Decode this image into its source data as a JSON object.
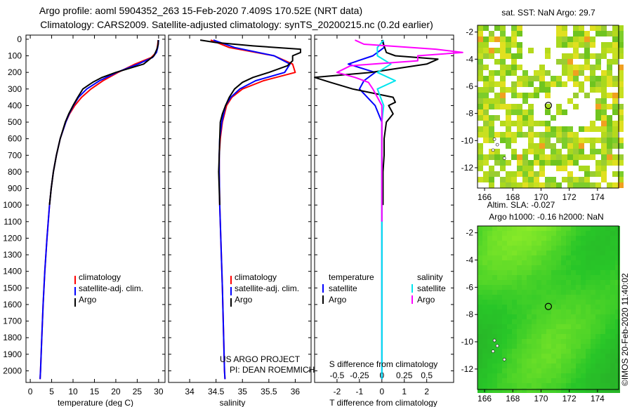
{
  "title": {
    "line1": "Argo profile: aoml 5904352_263 15-Feb-2020 7.409S 170.52E (NRT data)",
    "line2": "Climatology: CARS2009. Satellite-adjusted climatology: synTS_20200215.nc (0.2d earlier)"
  },
  "colors": {
    "climatology": "#ff0000",
    "satellite": "#0000ff",
    "argo": "#000000",
    "satellite_salinity": "#00e5ee",
    "argo_salinity": "#ff00ff",
    "axis": "#000000"
  },
  "depth_axis": {
    "ticks": [
      "0",
      "100",
      "200",
      "300",
      "400",
      "500",
      "600",
      "700",
      "800",
      "900",
      "1000",
      "1100",
      "1200",
      "1300",
      "1400",
      "1500",
      "1600",
      "1700",
      "1800",
      "1900",
      "2000"
    ],
    "range": [
      0,
      2070
    ]
  },
  "chart_data": [
    {
      "name": "temperature-profile",
      "type": "line",
      "xlabel": "temperature (deg C)",
      "ylabel": "depth",
      "xlim": [
        -1,
        31.5
      ],
      "ylim": [
        2070,
        -25
      ],
      "xticks": [
        "0",
        "5",
        "10",
        "15",
        "20",
        "25",
        "30"
      ],
      "legend": [
        "climatology",
        "satellite-adj. clim.",
        "Argo"
      ],
      "series": [
        {
          "name": "climatology",
          "color": "#ff0000",
          "depth": [
            5,
            50,
            80,
            110,
            150,
            200,
            250,
            300,
            350,
            400,
            450,
            500,
            600,
            700,
            800,
            900,
            1000,
            1200,
            1400,
            1600,
            1800,
            2000,
            2050
          ],
          "values": [
            29.9,
            29.7,
            29.4,
            28.3,
            24.5,
            20.5,
            17,
            14.2,
            12,
            10.4,
            9.2,
            8.3,
            7,
            6.1,
            5.4,
            4.9,
            4.5,
            3.9,
            3.4,
            3,
            2.7,
            2.4,
            2.3
          ]
        },
        {
          "name": "satellite-adj. clim.",
          "color": "#0000ff",
          "depth": [
            5,
            50,
            80,
            110,
            150,
            200,
            250,
            300,
            350,
            400,
            450,
            500,
            600,
            700,
            800,
            900,
            1000,
            1200,
            1400,
            1600,
            1800,
            2000,
            2050
          ],
          "values": [
            30.0,
            29.8,
            29.5,
            28.6,
            25.2,
            20.2,
            16.2,
            13.2,
            11.3,
            10.1,
            9.1,
            8.3,
            7,
            6.1,
            5.4,
            4.9,
            4.5,
            3.9,
            3.4,
            3,
            2.7,
            2.4,
            2.3
          ]
        },
        {
          "name": "Argo",
          "color": "#000000",
          "depth": [
            5,
            30,
            60,
            100,
            150,
            200,
            230,
            260,
            300,
            350,
            400,
            450,
            500,
            600,
            700,
            800,
            900,
            1000
          ],
          "values": [
            29.9,
            29.9,
            29.6,
            28.9,
            26.5,
            20,
            16.8,
            14.6,
            12.3,
            11.1,
            10,
            9.0,
            8.2,
            7,
            6.1,
            5.4,
            4.9,
            4.5
          ]
        }
      ]
    },
    {
      "name": "salinity-profile",
      "type": "line",
      "xlabel": "salinity",
      "ylabel": "depth",
      "xlim": [
        33.6,
        36.3
      ],
      "ylim": [
        2070,
        -25
      ],
      "xticks": [
        "34",
        "34.5",
        "35",
        "35.5",
        "36"
      ],
      "legend": [
        "climatology",
        "satellite-adj. clim.",
        "Argo"
      ],
      "annotations": [
        "US ARGO PROJECT",
        "PI: DEAN ROEMMICH"
      ],
      "series": [
        {
          "name": "climatology",
          "color": "#ff0000",
          "depth": [
            5,
            50,
            100,
            150,
            200,
            250,
            300,
            350,
            400,
            500,
            600,
            700,
            800,
            1000,
            1500,
            2000,
            2050
          ],
          "values": [
            34.4,
            34.75,
            35.6,
            35.95,
            36.0,
            35.4,
            35.0,
            34.8,
            34.7,
            34.62,
            34.58,
            34.56,
            34.56,
            34.57,
            34.62,
            34.66,
            34.67
          ]
        },
        {
          "name": "satellite-adj. clim.",
          "color": "#0000ff",
          "depth": [
            5,
            50,
            100,
            150,
            200,
            250,
            300,
            350,
            400,
            500,
            600,
            700,
            800,
            1000,
            1500,
            2000,
            2050
          ],
          "values": [
            34.45,
            34.85,
            35.6,
            35.9,
            35.8,
            35.25,
            34.95,
            34.78,
            34.68,
            34.61,
            34.57,
            34.56,
            34.56,
            34.57,
            34.62,
            34.66,
            34.67
          ]
        },
        {
          "name": "Argo",
          "color": "#000000",
          "depth": [
            5,
            20,
            40,
            60,
            80,
            100,
            130,
            160,
            200,
            230,
            260,
            300,
            350,
            400,
            450,
            500,
            600,
            700,
            800,
            1000
          ],
          "values": [
            34.2,
            34.5,
            35.2,
            36.1,
            36.1,
            35.95,
            35.95,
            35.85,
            35.5,
            35.2,
            35.0,
            34.85,
            34.75,
            34.68,
            34.62,
            34.58,
            34.57,
            34.56,
            34.55,
            34.57
          ]
        }
      ]
    },
    {
      "name": "difference-profile",
      "type": "line",
      "xlabel": "T difference from climatology",
      "secondary_label": "S difference from climatology",
      "ylabel": "depth",
      "xlim": [
        -3,
        3.2
      ],
      "ylim": [
        2070,
        -25
      ],
      "xticks": [
        "-2",
        "-1",
        "0",
        "1",
        "2"
      ],
      "secondary_xticks": [
        "-0.5",
        "-0.25",
        "0",
        "0.25",
        "0.5"
      ],
      "legend": [
        "temperature",
        "satellite",
        "Argo",
        "salinity",
        "satellite",
        "Argo"
      ],
      "series": [
        {
          "name": "temperature satellite",
          "color": "#0000ff",
          "depth": [
            5,
            50,
            100,
            150,
            200,
            250,
            300,
            400,
            500,
            700,
            1000,
            2050
          ],
          "values": [
            0.05,
            0.1,
            -0.4,
            -1.5,
            -0.3,
            -0.8,
            -1.0,
            -0.3,
            0,
            0,
            0,
            0
          ]
        },
        {
          "name": "temperature Argo",
          "color": "#000000",
          "depth": [
            5,
            40,
            80,
            100,
            120,
            150,
            200,
            230,
            260,
            300,
            350,
            380,
            400,
            450,
            500,
            600,
            700,
            800,
            900,
            1000
          ],
          "values": [
            0.0,
            0.1,
            0.2,
            0.6,
            2.5,
            2.0,
            -0.5,
            -3.0,
            -2.3,
            -1.3,
            0.5,
            0.6,
            0.3,
            0.5,
            0.2,
            0.1,
            0.1,
            0.05,
            0.05,
            0.05
          ]
        },
        {
          "name": "salinity satellite",
          "color": "#00e5ee",
          "depth": [
            5,
            50,
            100,
            150,
            200,
            250,
            300,
            400,
            500,
            700,
            1000,
            2050
          ],
          "values": [
            0.02,
            -0.05,
            -0.05,
            0.1,
            -0.05,
            0.15,
            -0.05,
            0.02,
            0.0,
            0.0,
            0.0,
            0.0
          ]
        },
        {
          "name": "salinity Argo",
          "color": "#ff00ff",
          "depth": [
            5,
            30,
            60,
            80,
            100,
            130,
            160,
            200,
            230,
            260,
            300,
            400,
            500,
            700,
            1000,
            1100
          ],
          "values": [
            -0.3,
            -0.2,
            0.6,
            0.9,
            0.4,
            0.4,
            -0.35,
            -0.5,
            -0.3,
            -0.15,
            -0.1,
            0.0,
            0.0,
            0.0,
            0.0,
            0.0
          ]
        }
      ]
    },
    {
      "name": "sst-map",
      "type": "heatmap",
      "title": "sat. SST: NaN Argo: 29.7",
      "xlim": [
        165.5,
        175.5
      ],
      "ylim": [
        -13.5,
        -1.5
      ],
      "xticks": [
        "166",
        "168",
        "170",
        "172",
        "174"
      ],
      "yticks": [
        "-2",
        "-4",
        "-6",
        "-8",
        "-10",
        "-12"
      ],
      "marker": {
        "lon": 170.52,
        "lat": -7.409
      }
    },
    {
      "name": "sla-map",
      "type": "heatmap",
      "title_line1": "Altim. SLA: -0.027",
      "title_line2": "Argo h1000: -0.16 h2000: NaN",
      "xlim": [
        165.5,
        175.5
      ],
      "ylim": [
        -13.5,
        -1.5
      ],
      "xticks": [
        "166",
        "168",
        "170",
        "172",
        "174"
      ],
      "yticks": [
        "-2",
        "-4",
        "-6",
        "-8",
        "-10",
        "-12"
      ],
      "marker": {
        "lon": 170.52,
        "lat": -7.409
      }
    }
  ],
  "footer": {
    "credit": "©IMOS 20-Feb-2020 11:40:02"
  }
}
